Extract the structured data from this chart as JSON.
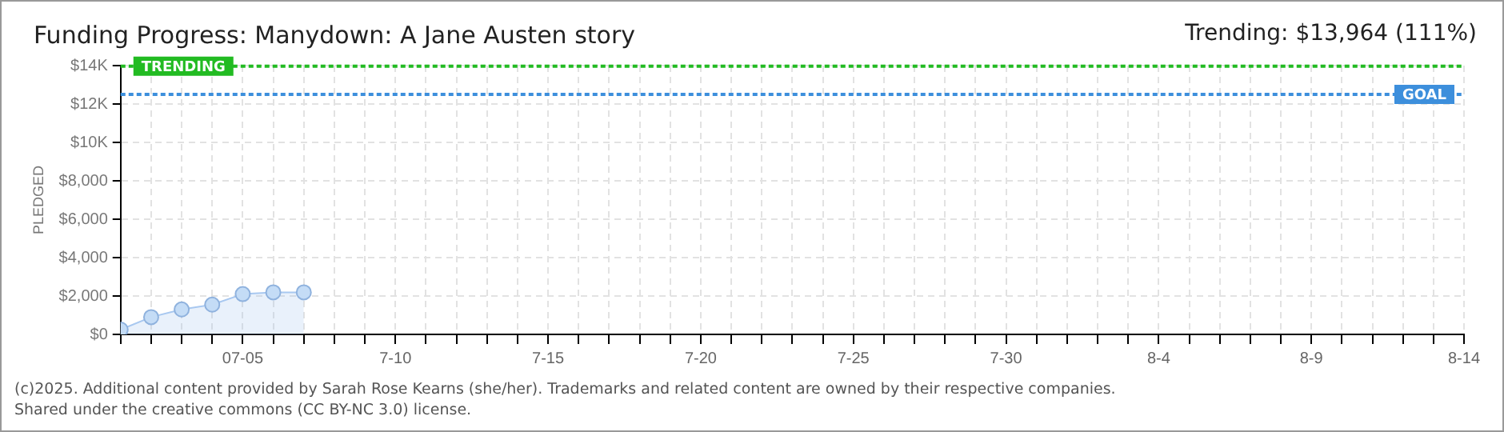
{
  "chart_data": {
    "type": "area",
    "title": "Funding Progress: Manydown: A Jane Austen story",
    "subtitle": "Trending: $13,964 (111%)",
    "ylabel": "PLEDGED",
    "x": [
      "--07-01",
      "--07-02",
      "--07-03",
      "--07-04",
      "--07-05",
      "--07-06",
      "--07-07"
    ],
    "series": [
      {
        "color": "#a8c8f0",
        "values": [
          250,
          900,
          1300,
          1550,
          2100,
          2190,
          2190
        ]
      }
    ],
    "xlim": [
      "--07-01",
      "--08-14"
    ],
    "xticks": [
      {
        "value": "--07-01",
        "label": null
      },
      {
        "value": "--07-02",
        "label": null
      },
      {
        "value": "--07-03",
        "label": null
      },
      {
        "value": "--07-04",
        "label": null
      },
      {
        "value": "--07-05",
        "label": "07-05"
      },
      {
        "value": "--07-06",
        "label": null
      },
      {
        "value": "--07-07",
        "label": null
      },
      {
        "value": "--07-08",
        "label": null
      },
      {
        "value": "--07-09",
        "label": null
      },
      {
        "value": "--07-10",
        "label": "7-10"
      },
      {
        "value": "--07-11",
        "label": null
      },
      {
        "value": "--07-12",
        "label": null
      },
      {
        "value": "--07-13",
        "label": null
      },
      {
        "value": "--07-14",
        "label": null
      },
      {
        "value": "--07-15",
        "label": "7-15"
      },
      {
        "value": "--07-16",
        "label": null
      },
      {
        "value": "--07-17",
        "label": null
      },
      {
        "value": "--07-18",
        "label": null
      },
      {
        "value": "--07-19",
        "label": null
      },
      {
        "value": "--07-20",
        "label": "7-20"
      },
      {
        "value": "--07-21",
        "label": null
      },
      {
        "value": "--07-22",
        "label": null
      },
      {
        "value": "--07-23",
        "label": null
      },
      {
        "value": "--07-24",
        "label": null
      },
      {
        "value": "--07-25",
        "label": "7-25"
      },
      {
        "value": "--07-26",
        "label": null
      },
      {
        "value": "--07-27",
        "label": null
      },
      {
        "value": "--07-28",
        "label": null
      },
      {
        "value": "--07-29",
        "label": null
      },
      {
        "value": "--07-30",
        "label": "7-30"
      },
      {
        "value": "--07-31",
        "label": null
      },
      {
        "value": "--08-01",
        "label": null
      },
      {
        "value": "--08-02",
        "label": null
      },
      {
        "value": "--08-03",
        "label": null
      },
      {
        "value": "--08-04",
        "label": "8-4"
      },
      {
        "value": "--08-05",
        "label": null
      },
      {
        "value": "--08-06",
        "label": null
      },
      {
        "value": "--08-07",
        "label": null
      },
      {
        "value": "--08-08",
        "label": null
      },
      {
        "value": "--08-09",
        "label": "8-9"
      },
      {
        "value": "--08-10",
        "label": null
      },
      {
        "value": "--08-11",
        "label": null
      },
      {
        "value": "--08-12",
        "label": null
      },
      {
        "value": "--08-13",
        "label": null
      },
      {
        "value": "--08-14",
        "label": "8-14"
      }
    ],
    "ylim": [
      0,
      14000
    ],
    "yticks": [
      {
        "value": 0,
        "label": "$0"
      },
      {
        "value": 2000,
        "label": "$2,000"
      },
      {
        "value": 4000,
        "label": "$4,000"
      },
      {
        "value": 6000,
        "label": "$6,000"
      },
      {
        "value": 8000,
        "label": "$8,000"
      },
      {
        "value": 10000,
        "label": "$10K"
      },
      {
        "value": 12000,
        "label": "$12K"
      },
      {
        "value": 14000,
        "label": "$14K"
      }
    ],
    "ref_lines": [
      {
        "axis": "y",
        "value": 13964,
        "label": "TRENDING",
        "color": "#22bb22",
        "line_style": "dotted"
      },
      {
        "axis": "y",
        "value": 12500,
        "label": "GOAL",
        "color": "#3d8fdc",
        "line_style": "dotted"
      }
    ],
    "grid": true,
    "marker": "circle",
    "legend": false,
    "annotations": [
      "(c)2025. Additional content provided by Sarah Rose Kearns (she/her). Trademarks and related content are owned by their respective companies.",
      "Shared under the creative commons (CC BY-NC 3.0) license."
    ]
  }
}
